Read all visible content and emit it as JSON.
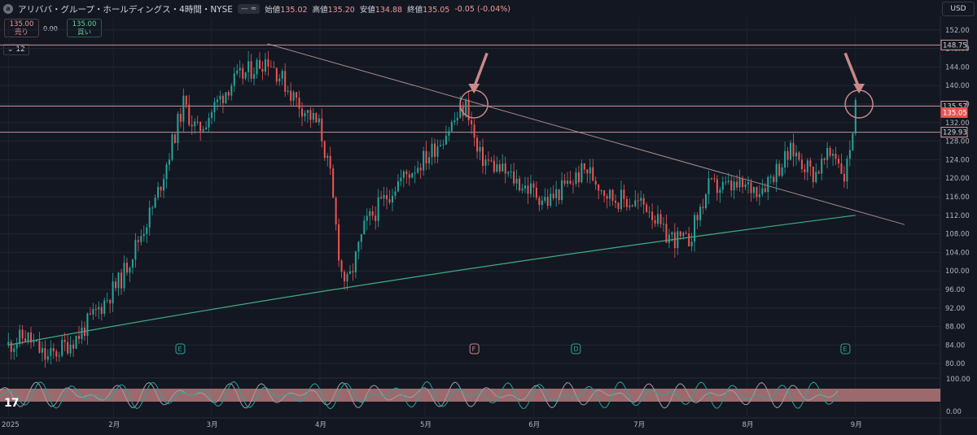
{
  "header": {
    "title": "アリババ・グループ・ホールディングス・4時間・NYSE",
    "ohlc": [
      {
        "k": "始値",
        "v": "135.02"
      },
      {
        "k": "高値",
        "v": "135.20"
      },
      {
        "k": "安値",
        "v": "134.88"
      },
      {
        "k": "終値",
        "v": "135.05"
      }
    ],
    "change": "-0.05 (-0.04%)",
    "currency": "USD",
    "sell_price": "135.00",
    "sell_label": "売り",
    "spread": "0.00",
    "buy_price": "135.00",
    "buy_label": "買い",
    "studies_count": "12"
  },
  "colors": {
    "bg": "#131722",
    "up": "#26a69a",
    "down": "#ef5350",
    "level": "#d7a3a3",
    "ma": "#3fae84",
    "annot": "#c9888a"
  },
  "chart_data": {
    "type": "candlestick",
    "title": "アリババ・グループ・ホールディングス・4時間・NYSE",
    "x_tick_labels": [
      "2025",
      "2月",
      "3月",
      "4月",
      "5月",
      "6月",
      "7月",
      "8月",
      "9月"
    ],
    "y_ticks": [
      80,
      84,
      88,
      92,
      96,
      100,
      104,
      108,
      112,
      116,
      120,
      124,
      128,
      132,
      136,
      140,
      144,
      148,
      152
    ],
    "ylim": [
      77.4,
      154.6
    ],
    "price_path_approx": [
      {
        "date": "2025-01-02",
        "close": 84
      },
      {
        "date": "2025-01-07",
        "close": 86
      },
      {
        "date": "2025-01-13",
        "close": 81
      },
      {
        "date": "2025-01-22",
        "close": 86
      },
      {
        "date": "2025-02-03",
        "close": 98
      },
      {
        "date": "2025-02-13",
        "close": 115
      },
      {
        "date": "2025-02-21",
        "close": 136
      },
      {
        "date": "2025-02-25",
        "close": 130
      },
      {
        "date": "2025-03-06",
        "close": 140
      },
      {
        "date": "2025-03-17",
        "close": 146
      },
      {
        "date": "2025-03-25",
        "close": 137
      },
      {
        "date": "2025-04-01",
        "close": 131
      },
      {
        "date": "2025-04-04",
        "close": 120
      },
      {
        "date": "2025-04-07",
        "close": 100
      },
      {
        "date": "2025-04-09",
        "close": 97
      },
      {
        "date": "2025-04-14",
        "close": 110
      },
      {
        "date": "2025-04-23",
        "close": 119
      },
      {
        "date": "2025-05-02",
        "close": 125
      },
      {
        "date": "2025-05-13",
        "close": 136
      },
      {
        "date": "2025-05-16",
        "close": 125
      },
      {
        "date": "2025-05-26",
        "close": 120
      },
      {
        "date": "2025-06-05",
        "close": 115
      },
      {
        "date": "2025-06-16",
        "close": 122
      },
      {
        "date": "2025-06-23",
        "close": 116
      },
      {
        "date": "2025-07-04",
        "close": 114
      },
      {
        "date": "2025-07-08",
        "close": 108
      },
      {
        "date": "2025-07-15",
        "close": 106
      },
      {
        "date": "2025-07-21",
        "close": 118
      },
      {
        "date": "2025-08-05",
        "close": 118
      },
      {
        "date": "2025-08-14",
        "close": 126
      },
      {
        "date": "2025-08-20",
        "close": 121
      },
      {
        "date": "2025-08-26",
        "close": 126
      },
      {
        "date": "2025-08-29",
        "close": 120
      },
      {
        "date": "2025-09-01",
        "close": 135
      }
    ],
    "horizontal_levels": [
      148.75,
      135.57,
      129.93
    ],
    "last_price": 135.05,
    "price_labels": [
      "148.75",
      "135.57",
      "135.05",
      "129.93"
    ],
    "trendlines": [
      {
        "name": "descending",
        "from": {
          "date": "2025-03-17",
          "price": 149
        },
        "to": {
          "date": "2025-09-15",
          "price": 110
        }
      },
      {
        "name": "moving-average",
        "from": {
          "date": "2025-01-02",
          "price": 84
        },
        "to": {
          "date": "2025-09-01",
          "price": 112
        }
      }
    ],
    "event_markers": [
      {
        "date": "2025-02-20",
        "label": "E"
      },
      {
        "date": "2025-05-15",
        "label": "F"
      },
      {
        "date": "2025-06-13",
        "label": "D"
      },
      {
        "date": "2025-08-29",
        "label": "E"
      }
    ],
    "annotations": [
      {
        "type": "circle",
        "date": "2025-05-15",
        "price": 136
      },
      {
        "type": "circle",
        "date": "2025-09-02",
        "price": 136
      },
      {
        "type": "arrow",
        "target_date": "2025-05-15"
      },
      {
        "type": "arrow",
        "target_date": "2025-09-02"
      }
    ],
    "oscillator": {
      "y_ticks": [
        "100.00",
        "0.00"
      ],
      "ylim": [
        0,
        100
      ],
      "band": [
        30,
        70
      ]
    }
  }
}
